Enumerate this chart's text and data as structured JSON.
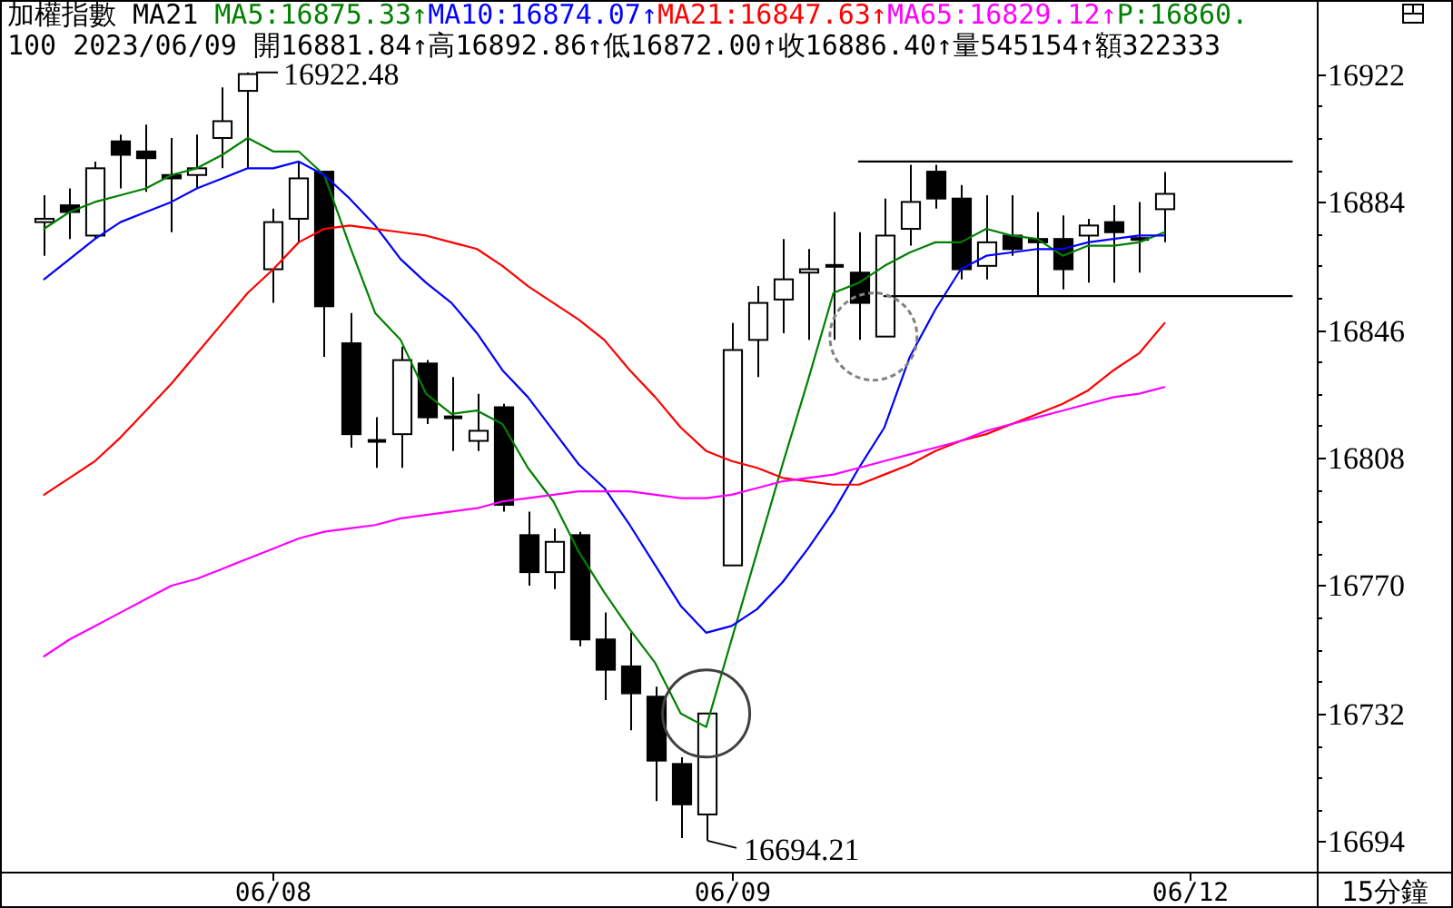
{
  "chart_data": {
    "type": "candlestick",
    "title": "加權指數 MA21",
    "subtitle": "100 2023/06/09 開16881.84↑高16892.86↑低16872.00↑收16886.40↑量545154↑額322333",
    "categories": [
      null,
      null,
      null,
      null,
      null,
      null,
      null,
      null,
      null,
      "06/08",
      null,
      null,
      null,
      null,
      null,
      null,
      null,
      null,
      null,
      null,
      null,
      null,
      null,
      null,
      null,
      null,
      null,
      "06/09",
      null,
      null,
      null,
      null,
      null,
      null,
      null,
      null,
      null,
      null,
      null,
      null,
      null,
      null,
      null,
      null,
      null,
      "06/12",
      null,
      null,
      null,
      null
    ],
    "ohlc": [
      [
        16878,
        16886,
        16868,
        16879
      ],
      [
        16883,
        16888,
        16873,
        16881
      ],
      [
        16874,
        16896,
        16873,
        16894
      ],
      [
        16902,
        16904,
        16888,
        16898
      ],
      [
        16899,
        16907,
        16887,
        16897
      ],
      [
        16892,
        16903,
        16875,
        16891
      ],
      [
        16892,
        16904,
        16888,
        16894
      ],
      [
        16903,
        16918,
        16894,
        16908
      ],
      [
        16917,
        16922.48,
        16894,
        16922
      ],
      [
        16864,
        16882,
        16854,
        16878
      ],
      [
        16879,
        16896,
        16872,
        16891
      ],
      [
        16893,
        16893,
        16838,
        16853
      ],
      [
        16842,
        16851,
        16811,
        16815
      ],
      [
        16813,
        16820,
        16805,
        16813
      ],
      [
        16815,
        16841,
        16805,
        16837
      ],
      [
        16836,
        16837,
        16818,
        16820
      ],
      [
        16820,
        16832,
        16810,
        16820
      ],
      [
        16813,
        16827,
        16810,
        16816
      ],
      [
        16823,
        16824,
        16792,
        16794
      ],
      [
        16785,
        16792,
        16770,
        16774
      ],
      [
        16774,
        16787,
        16769,
        16783
      ],
      [
        16785,
        16786,
        16752,
        16754
      ],
      [
        16754,
        16762,
        16736,
        16745
      ],
      [
        16746,
        16756,
        16727,
        16738
      ],
      [
        16737,
        16740,
        16706,
        16718
      ],
      [
        16717,
        16719,
        16695,
        16705
      ],
      [
        16702,
        16732,
        16694.21,
        16732
      ],
      [
        16776,
        16848,
        16776,
        16840
      ],
      [
        16843,
        16859,
        16832,
        16854
      ],
      [
        16855,
        16873,
        16845,
        16861
      ],
      [
        16863,
        16870,
        16843,
        16864
      ],
      [
        16865,
        16881,
        16843,
        16865
      ],
      [
        16863,
        16875,
        16843,
        16854
      ],
      [
        16844,
        16885,
        16844,
        16874
      ],
      [
        16876,
        16895,
        16871,
        16884
      ],
      [
        16893,
        16895,
        16882,
        16885
      ],
      [
        16885,
        16889,
        16861,
        16864
      ],
      [
        16865,
        16886,
        16861,
        16872
      ],
      [
        16874,
        16886,
        16868,
        16870
      ],
      [
        16873,
        16881,
        16856,
        16872
      ],
      [
        16873,
        16880,
        16858,
        16864
      ],
      [
        16874,
        16879,
        16860,
        16877
      ],
      [
        16878,
        16883,
        16860,
        16875
      ],
      [
        16873,
        16884,
        16863,
        16873
      ],
      [
        16881.84,
        16892.86,
        16872.0,
        16886.4
      ],
      null,
      null,
      null,
      null,
      null
    ],
    "series": [
      {
        "name": "MA5:16875.33↑",
        "type": "line",
        "color": "#008000",
        "values": [
          16876,
          16881,
          16884,
          16886,
          16888,
          16892,
          16894,
          16898,
          16903,
          16899,
          16899,
          16892,
          16871,
          16851,
          16843,
          16827,
          16821,
          16822,
          16818,
          16805,
          16795,
          16780,
          16768,
          16757,
          16747,
          16732,
          16728,
          16754,
          16780,
          16806,
          16831,
          16857,
          16860,
          16865,
          16869,
          16872,
          16872,
          16876,
          16874,
          16873,
          16868,
          16871,
          16871,
          16872,
          16875,
          null,
          null,
          null,
          null,
          null
        ]
      },
      {
        "name": "MA10:16874.07↑",
        "type": "line",
        "color": "#0000ff",
        "values": [
          16861,
          16867,
          16873,
          16878,
          16881,
          16884,
          16888,
          16891,
          16894,
          16894,
          16896,
          16892,
          16885,
          16877,
          16867,
          16860,
          16854,
          16845,
          16834,
          16826,
          16816,
          16806,
          16799,
          16788,
          16776,
          16764,
          16756,
          16758,
          16763,
          16771,
          16781,
          16792,
          16805,
          16817,
          16838,
          16852,
          16864,
          16868,
          16869,
          16870,
          16870,
          16872,
          16873,
          16874,
          16874,
          null,
          null,
          null,
          null,
          null
        ]
      },
      {
        "name": "MA21:16847.63↑",
        "type": "line",
        "color": "#ff0000",
        "values": [
          16797,
          16802,
          16807,
          16814,
          16822,
          16830,
          16839,
          16848,
          16857,
          16864,
          16872,
          16876,
          16877,
          16876,
          16875,
          16874,
          16872,
          16870,
          16865,
          16859,
          16854,
          16849,
          16843,
          16834,
          16826,
          16817,
          16810,
          16807,
          16805,
          16802,
          16801,
          16800,
          16800,
          16803,
          16806,
          16810,
          16813,
          16815,
          16818,
          16821,
          16824,
          16828,
          16834,
          16839,
          16848,
          null,
          null,
          null,
          null,
          null
        ]
      },
      {
        "name": "MA65:16829.12↑",
        "type": "line",
        "color": "#ff00ff",
        "values": [
          16749,
          16754,
          16758,
          16762,
          16766,
          16770,
          16772,
          16775,
          16778,
          16781,
          16784,
          16786,
          16787,
          16788,
          16790,
          16791,
          16792,
          16793,
          16795,
          16796,
          16797,
          16798,
          16798,
          16798,
          16797,
          16796,
          16796,
          16797,
          16799,
          16801,
          16802,
          16803,
          16805,
          16807,
          16809,
          16811,
          16813,
          16816,
          16818,
          16820,
          16822,
          16824,
          16826,
          16827,
          16829,
          null,
          null,
          null,
          null,
          null
        ]
      },
      {
        "type": "line",
        "color": "#000000",
        "values": [
          null,
          null,
          null,
          null,
          null,
          null,
          null,
          null,
          null,
          null,
          null,
          null,
          null,
          null,
          null,
          null,
          null,
          null,
          null,
          null,
          null,
          null,
          null,
          null,
          null,
          null,
          null,
          null,
          null,
          null,
          null,
          null,
          16896,
          16896,
          16896,
          16896,
          16896,
          16896,
          16896,
          16896,
          16896,
          16896,
          16896,
          16896,
          16896,
          16896,
          16896,
          16896,
          16896,
          16896
        ]
      },
      {
        "type": "line",
        "color": "#000000",
        "values": [
          null,
          null,
          null,
          null,
          null,
          null,
          null,
          null,
          null,
          null,
          null,
          null,
          null,
          null,
          null,
          null,
          null,
          null,
          null,
          null,
          null,
          null,
          null,
          null,
          null,
          null,
          null,
          null,
          null,
          null,
          null,
          null,
          null,
          16856,
          16856,
          16856,
          16856,
          16856,
          16856,
          16856,
          16856,
          16856,
          16856,
          16856,
          16856,
          16856,
          16856,
          16856,
          16856,
          16856
        ]
      }
    ],
    "ylim": [
      16685,
      16944
    ],
    "yticks": [
      16694,
      {
        "value": 16703.5,
        "label": null
      },
      {
        "value": 16713,
        "label": null
      },
      {
        "value": 16722.5,
        "label": null
      },
      16732,
      {
        "value": 16741.5,
        "label": null
      },
      {
        "value": 16751,
        "label": null
      },
      {
        "value": 16760.5,
        "label": null
      },
      16770,
      {
        "value": 16779.5,
        "label": null
      },
      {
        "value": 16789,
        "label": null
      },
      {
        "value": 16798.5,
        "label": null
      },
      16808,
      {
        "value": 16817.5,
        "label": null
      },
      {
        "value": 16827,
        "label": null
      },
      {
        "value": 16836.5,
        "label": null
      },
      16846,
      {
        "value": 16855.5,
        "label": null
      },
      {
        "value": 16865,
        "label": null
      },
      {
        "value": 16874.5,
        "label": null
      },
      16884,
      {
        "value": 16893.5,
        "label": null
      },
      {
        "value": 16903,
        "label": null
      },
      {
        "value": 16912.5,
        "label": null
      },
      16922
    ],
    "legend": "top",
    "annotations": [
      "P:16860.",
      "16922.48",
      "16694.21",
      "15分鐘"
    ]
  }
}
